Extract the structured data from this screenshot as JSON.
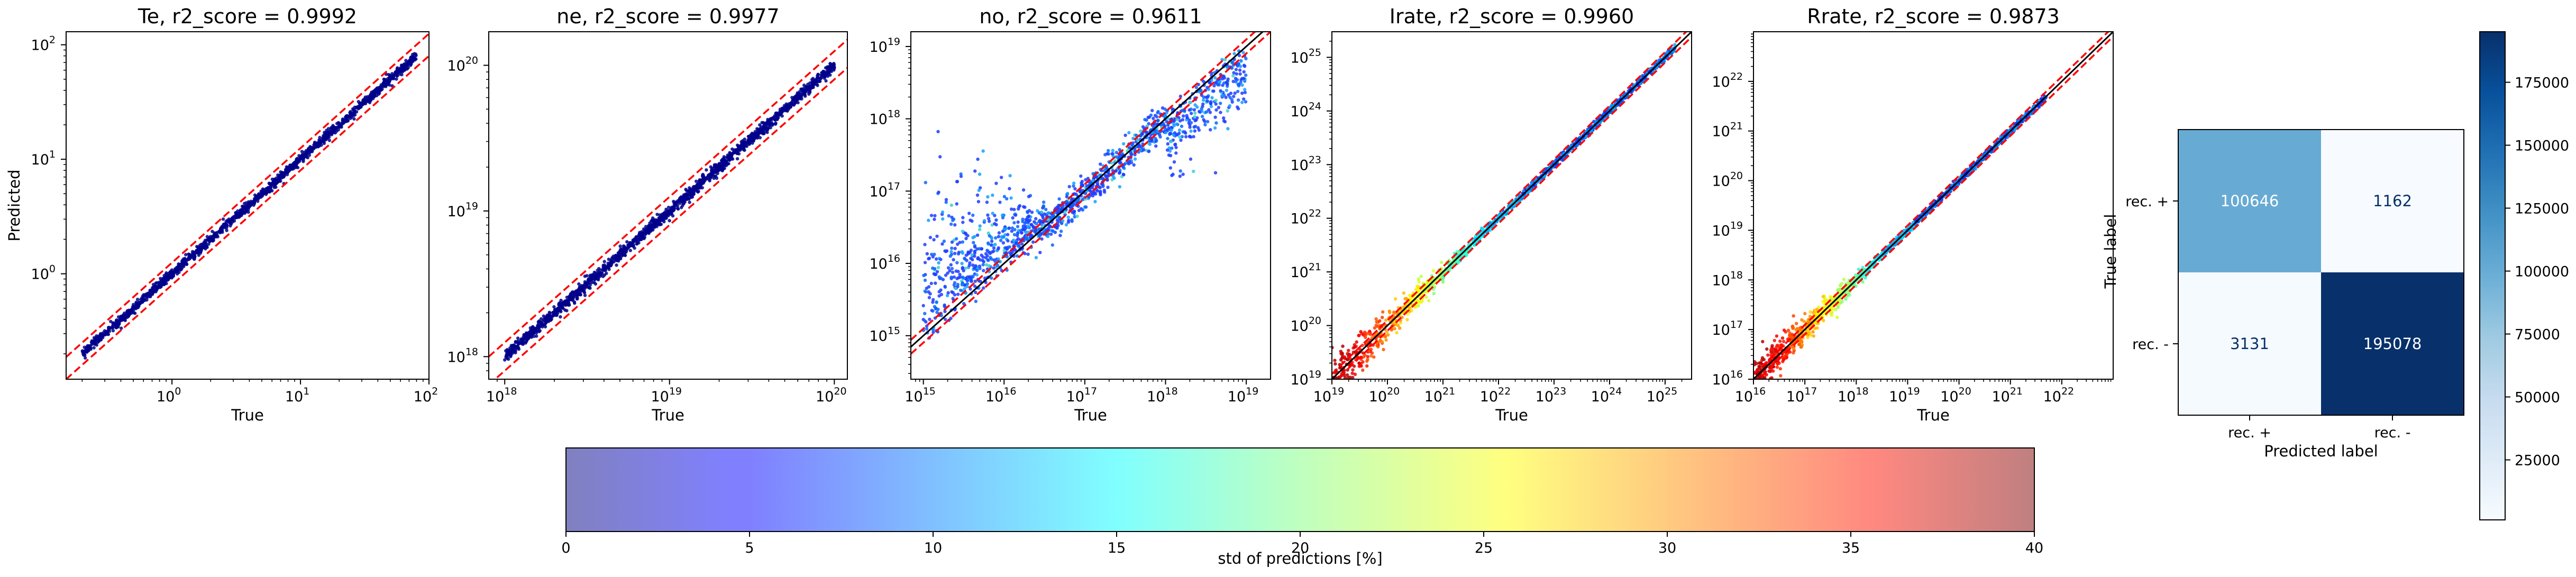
{
  "chart_data": [
    {
      "type": "scatter",
      "id": "te",
      "title": "Te, r2_score = 0.9992",
      "xlabel": "True",
      "ylabel": "Predicted",
      "xscale": "log",
      "yscale": "log",
      "xlim": [
        0.15,
        100
      ],
      "ylim": [
        0.12,
        130
      ],
      "xticks": [
        {
          "base": "10",
          "exp": "0",
          "v": 1
        },
        {
          "base": "10",
          "exp": "1",
          "v": 10
        },
        {
          "base": "10",
          "exp": "2",
          "v": 100
        }
      ],
      "yticks": [
        {
          "base": "10",
          "exp": "0",
          "v": 1
        },
        {
          "base": "10",
          "exp": "1",
          "v": 10
        },
        {
          "base": "10",
          "exp": "2",
          "v": 100
        }
      ],
      "data_range": [
        0.2,
        80
      ],
      "band_factor": 1.25,
      "identity_line": false,
      "spread": 0.04,
      "point_color": "#00008b"
    },
    {
      "type": "scatter",
      "id": "ne",
      "title": "ne, r2_score = 0.9977",
      "xlabel": "True",
      "ylabel": "",
      "xscale": "log",
      "yscale": "log",
      "xlim": [
        8e+17,
        1.2e+20
      ],
      "ylim": [
        7e+17,
        1.7e+20
      ],
      "xticks": [
        {
          "base": "10",
          "exp": "18",
          "v": 1e+18
        },
        {
          "base": "10",
          "exp": "19",
          "v": 1e+19
        },
        {
          "base": "10",
          "exp": "20",
          "v": 1e+20
        }
      ],
      "yticks": [
        {
          "base": "10",
          "exp": "18",
          "v": 1e+18
        },
        {
          "base": "10",
          "exp": "19",
          "v": 1e+19
        },
        {
          "base": "10",
          "exp": "20",
          "v": 1e+20
        }
      ],
      "data_range": [
        1e+18,
        1e+20
      ],
      "band_factor": 1.25,
      "identity_line": false,
      "spread": 0.04,
      "point_color": "#00008b"
    },
    {
      "type": "scatter",
      "id": "no",
      "title": "no, r2_score = 0.9611",
      "xlabel": "True",
      "ylabel": "",
      "xscale": "log",
      "yscale": "log",
      "xlim": [
        700000000000000.0,
        2e+19
      ],
      "ylim": [
        250000000000000.0,
        1.6e+19
      ],
      "xticks": [
        {
          "base": "10",
          "exp": "15",
          "v": 1000000000000000.0
        },
        {
          "base": "10",
          "exp": "16",
          "v": 1e+16
        },
        {
          "base": "10",
          "exp": "17",
          "v": 1e+17
        },
        {
          "base": "10",
          "exp": "18",
          "v": 1e+18
        },
        {
          "base": "10",
          "exp": "19",
          "v": 1e+19
        }
      ],
      "yticks": [
        {
          "base": "10",
          "exp": "15",
          "v": 1000000000000000.0
        },
        {
          "base": "10",
          "exp": "16",
          "v": 1e+16
        },
        {
          "base": "10",
          "exp": "17",
          "v": 1e+17
        },
        {
          "base": "10",
          "exp": "18",
          "v": 1e+18
        },
        {
          "base": "10",
          "exp": "19",
          "v": 1e+19
        }
      ],
      "data_range": [
        1000000000000000.0,
        1e+19
      ],
      "band_factor": 1.25,
      "identity_line": true,
      "spread": 0.35,
      "point_color": "#2040ff"
    },
    {
      "type": "scatter",
      "id": "irate",
      "title": "Irate, r2_score = 0.9960",
      "xlabel": "True",
      "ylabel": "",
      "xscale": "log",
      "yscale": "log",
      "xlim": [
        1e+19,
        3e+25
      ],
      "ylim": [
        1e+19,
        3e+25
      ],
      "xticks": [
        {
          "base": "10",
          "exp": "19",
          "v": 1e+19
        },
        {
          "base": "10",
          "exp": "20",
          "v": 1e+20
        },
        {
          "base": "10",
          "exp": "21",
          "v": 1e+21
        },
        {
          "base": "10",
          "exp": "22",
          "v": 1e+22
        },
        {
          "base": "10",
          "exp": "23",
          "v": 1e+23
        },
        {
          "base": "10",
          "exp": "24",
          "v": 1e+24
        },
        {
          "base": "10",
          "exp": "25",
          "v": 1e+25
        }
      ],
      "yticks": [
        {
          "base": "10",
          "exp": "19",
          "v": 1e+19
        },
        {
          "base": "10",
          "exp": "20",
          "v": 1e+20
        },
        {
          "base": "10",
          "exp": "21",
          "v": 1e+21
        },
        {
          "base": "10",
          "exp": "22",
          "v": 1e+22
        },
        {
          "base": "10",
          "exp": "23",
          "v": 1e+23
        },
        {
          "base": "10",
          "exp": "24",
          "v": 1e+24
        },
        {
          "base": "10",
          "exp": "25",
          "v": 1e+25
        }
      ],
      "data_range": [
        1e+19,
        1.5e+25
      ],
      "band_factor": 1.25,
      "identity_line": true,
      "spread": 0.18,
      "point_color": "#c04000"
    },
    {
      "type": "scatter",
      "id": "rrate",
      "title": "Rrate, r2_score = 0.9873",
      "xlabel": "True",
      "ylabel": "",
      "xscale": "log",
      "yscale": "log",
      "xlim": [
        1e+16,
        1e+23
      ],
      "ylim": [
        1e+16,
        1e+23
      ],
      "xticks": [
        {
          "base": "10",
          "exp": "16",
          "v": 1e+16
        },
        {
          "base": "10",
          "exp": "17",
          "v": 1e+17
        },
        {
          "base": "10",
          "exp": "18",
          "v": 1e+18
        },
        {
          "base": "10",
          "exp": "19",
          "v": 1e+19
        },
        {
          "base": "10",
          "exp": "20",
          "v": 1e+20
        },
        {
          "base": "10",
          "exp": "21",
          "v": 1e+21
        },
        {
          "base": "10",
          "exp": "22",
          "v": 1e+22
        }
      ],
      "yticks": [
        {
          "base": "10",
          "exp": "16",
          "v": 1e+16
        },
        {
          "base": "10",
          "exp": "17",
          "v": 1e+17
        },
        {
          "base": "10",
          "exp": "18",
          "v": 1e+18
        },
        {
          "base": "10",
          "exp": "19",
          "v": 1e+19
        },
        {
          "base": "10",
          "exp": "20",
          "v": 1e+20
        },
        {
          "base": "10",
          "exp": "21",
          "v": 1e+21
        },
        {
          "base": "10",
          "exp": "22",
          "v": 1e+22
        }
      ],
      "data_range": [
        1e+16,
        5e+21
      ],
      "band_factor": 1.25,
      "identity_line": true,
      "spread": 0.2,
      "point_color": "#c04000"
    },
    {
      "type": "heatmap",
      "id": "confusion",
      "title": "",
      "xlabel": "Predicted label",
      "ylabel": "True label",
      "xticklabels": [
        "rec. +",
        "rec. -"
      ],
      "yticklabels": [
        "rec. +",
        "rec. -"
      ],
      "matrix": [
        [
          100646,
          1162
        ],
        [
          3131,
          195078
        ]
      ],
      "colormap": "Blues",
      "colorbar": {
        "range": [
          1162,
          195078
        ],
        "ticks": [
          25000,
          50000,
          75000,
          100000,
          125000,
          150000,
          175000
        ],
        "ticklabels": [
          "25000",
          "50000",
          "75000",
          "100000",
          "125000",
          "150000",
          "175000"
        ]
      }
    }
  ],
  "colorbar_std": {
    "label": "std of predictions [%]",
    "range": [
      0,
      40
    ],
    "ticks": [
      0,
      5,
      10,
      15,
      20,
      25,
      30,
      35,
      40
    ],
    "ticklabels": [
      "0",
      "5",
      "10",
      "15",
      "20",
      "25",
      "30",
      "35",
      "40"
    ],
    "colormap": "jet"
  }
}
